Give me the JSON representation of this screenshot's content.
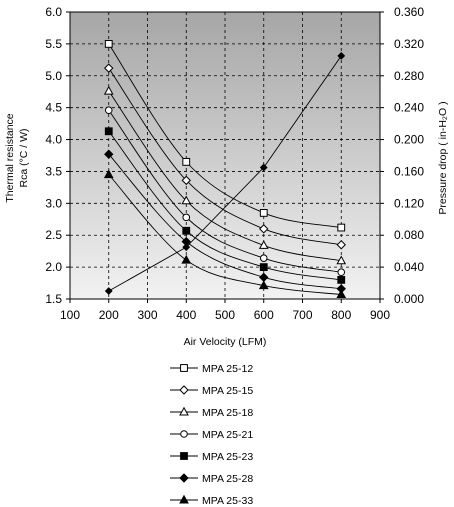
{
  "chart_data": {
    "type": "line",
    "x_label": "Air Velocity (LFM)",
    "y_left_label_line1": "Thermal resistance",
    "y_left_label_line2": "Rca (°C / W)",
    "y_right_label": "Pressure drop ( in-H₂O )",
    "x_range": [
      100,
      900
    ],
    "x_ticks": [
      "100",
      "200",
      "300",
      "400",
      "500",
      "600",
      "700",
      "800",
      "900"
    ],
    "y_left_range": [
      1.5,
      6.0
    ],
    "y_left_ticks": [
      "1.5",
      "2.0",
      "2.5",
      "3.0",
      "3.5",
      "4.0",
      "4.5",
      "5.0",
      "5.5",
      "6.0"
    ],
    "y_right_range": [
      0,
      0.36
    ],
    "y_right_ticks": [
      "0.000",
      "0.040",
      "0.080",
      "0.120",
      "0.160",
      "0.200",
      "0.240",
      "0.280",
      "0.320",
      "0.360"
    ],
    "grid": "dashed",
    "background": "gradient dark-gray top to light-gray bottom",
    "x": [
      200,
      400,
      600,
      800
    ],
    "series": [
      {
        "name": "MPA 25-12",
        "marker": "square-open",
        "values": [
          5.5,
          3.65,
          2.85,
          2.62
        ]
      },
      {
        "name": "MPA 25-15",
        "marker": "diamond-open",
        "values": [
          5.12,
          3.36,
          2.6,
          2.35
        ]
      },
      {
        "name": "MPA 25-18",
        "marker": "triangle-open",
        "values": [
          4.76,
          3.04,
          2.34,
          2.1
        ]
      },
      {
        "name": "MPA 25-21",
        "marker": "circle-open",
        "values": [
          4.46,
          2.78,
          2.14,
          1.92
        ]
      },
      {
        "name": "MPA 25-23",
        "marker": "square-filled",
        "values": [
          4.13,
          2.57,
          2.0,
          1.8
        ]
      },
      {
        "name": "MPA 25-28",
        "marker": "diamond-filled",
        "values": [
          3.77,
          2.4,
          1.84,
          1.66
        ]
      },
      {
        "name": "MPA 25-33",
        "marker": "triangle-filled",
        "values": [
          3.45,
          2.11,
          1.71,
          1.57
        ]
      }
    ],
    "pressure_drop": {
      "axis": "right",
      "marker": "diamond-filled-small",
      "values": [
        0.01,
        0.065,
        0.165,
        0.305
      ]
    }
  }
}
